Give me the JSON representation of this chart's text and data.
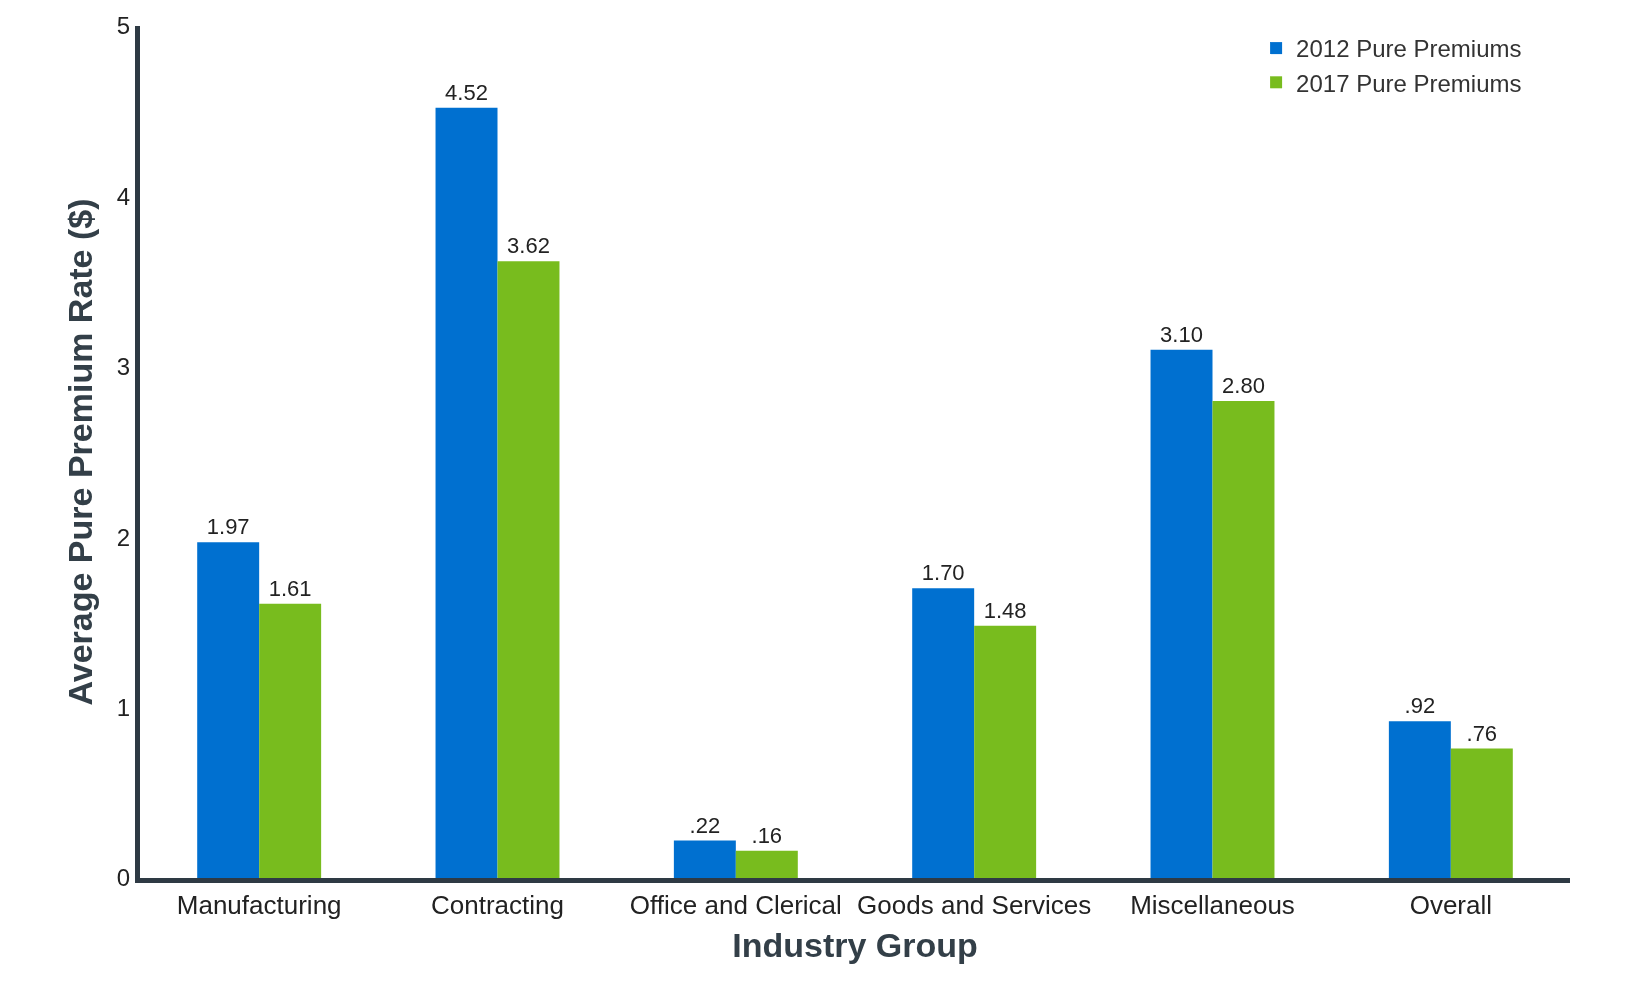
{
  "chart_data": {
    "type": "bar",
    "xlabel": "Industry Group",
    "ylabel": "Average Pure Premium Rate ($)",
    "categories": [
      "Manufacturing",
      "Contracting",
      "Office and Clerical",
      "Goods and Services",
      "Miscellaneous",
      "Overall"
    ],
    "series": [
      {
        "name": "2012 Pure Premiums",
        "color": "#0070d0",
        "values": [
          1.97,
          4.52,
          0.22,
          1.7,
          3.1,
          0.92
        ],
        "value_labels": [
          "1.97",
          "4.52",
          ".22",
          "1.70",
          "3.10",
          ".92"
        ]
      },
      {
        "name": "2017 Pure Premiums",
        "color": "#78bc1e",
        "values": [
          1.61,
          3.62,
          0.16,
          1.48,
          2.8,
          0.76
        ],
        "value_labels": [
          "1.61",
          "3.62",
          ".16",
          "1.48",
          "2.80",
          ".76"
        ]
      }
    ],
    "ylim": [
      0,
      5
    ],
    "yticks": [
      0,
      1,
      2,
      3,
      4,
      5
    ],
    "legend": "top right"
  }
}
